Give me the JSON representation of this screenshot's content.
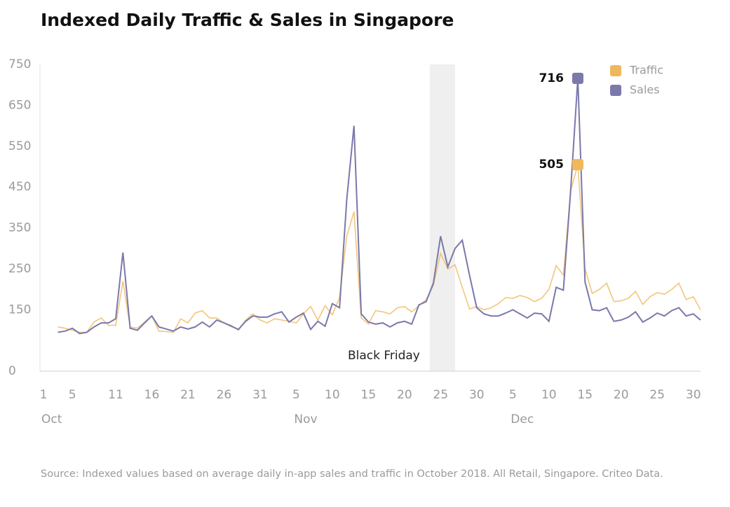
{
  "chart_data": {
    "type": "line",
    "title": "Indexed Daily Traffic & Sales in Singapore",
    "source": "Source: Indexed values based on average daily in-app sales and traffic in October 2018. All Retail, Singapore. Criteo Data.",
    "x": [
      3,
      4,
      5,
      6,
      7,
      8,
      9,
      10,
      11,
      12,
      13,
      14,
      15,
      16,
      17,
      18,
      19,
      20,
      21,
      22,
      23,
      24,
      25,
      26,
      27,
      28,
      29,
      30,
      31,
      32,
      33,
      34,
      35,
      36,
      37,
      38,
      39,
      40,
      41,
      42,
      43,
      44,
      45,
      46,
      47,
      48,
      49,
      50,
      51,
      52,
      53,
      54,
      55,
      56,
      57,
      58,
      59,
      60,
      61,
      62,
      63,
      64,
      65,
      66,
      67,
      68,
      69,
      70,
      71,
      72,
      73,
      74,
      75,
      76,
      77,
      78,
      79,
      80,
      81,
      82,
      83,
      84,
      85,
      86,
      87,
      88,
      89,
      90,
      91,
      92
    ],
    "series": [
      {
        "name": "Traffic",
        "color": "#f0b85a",
        "values": [
          108,
          105,
          100,
          95,
          95,
          120,
          130,
          112,
          112,
          220,
          108,
          105,
          120,
          135,
          98,
          97,
          95,
          128,
          118,
          142,
          148,
          130,
          130,
          118,
          112,
          100,
          125,
          140,
          125,
          118,
          128,
          125,
          122,
          118,
          140,
          158,
          125,
          160,
          138,
          180,
          330,
          390,
          130,
          115,
          148,
          145,
          140,
          155,
          158,
          145,
          160,
          175,
          210,
          288,
          250,
          260,
          205,
          152,
          158,
          150,
          155,
          165,
          180,
          178,
          185,
          180,
          170,
          178,
          200,
          258,
          235,
          440,
          505,
          250,
          190,
          200,
          215,
          170,
          172,
          178,
          195,
          163,
          182,
          192,
          188,
          200,
          215,
          175,
          182,
          150
        ]
      },
      {
        "name": "Sales",
        "color": "#7b78aa",
        "values": [
          95,
          98,
          105,
          92,
          95,
          108,
          118,
          118,
          128,
          290,
          105,
          100,
          118,
          135,
          108,
          103,
          98,
          108,
          103,
          108,
          120,
          108,
          125,
          118,
          110,
          102,
          122,
          135,
          132,
          132,
          140,
          145,
          120,
          132,
          142,
          102,
          122,
          110,
          165,
          155,
          420,
          600,
          140,
          120,
          115,
          118,
          108,
          118,
          122,
          115,
          162,
          170,
          215,
          330,
          255,
          300,
          320,
          235,
          155,
          140,
          135,
          135,
          142,
          150,
          140,
          130,
          142,
          140,
          122,
          205,
          198,
          440,
          716,
          218,
          150,
          148,
          155,
          122,
          125,
          132,
          145,
          120,
          130,
          142,
          135,
          148,
          155,
          135,
          140,
          125
        ]
      }
    ],
    "annotations": [
      {
        "text": "716",
        "series": 1,
        "index": 72
      },
      {
        "text": "505",
        "series": 0,
        "index": 72
      }
    ],
    "highlight": {
      "label": "Black Friday",
      "start": 54.5,
      "end": 58
    },
    "xlim": [
      1,
      92
    ],
    "xticks": [
      1,
      5,
      11,
      16,
      21,
      26,
      31,
      {
        "value": 36,
        "label": "5"
      },
      {
        "value": 41,
        "label": "10"
      },
      {
        "value": 46,
        "label": "15"
      },
      {
        "value": 51,
        "label": "20"
      },
      {
        "value": 56,
        "label": "25"
      },
      {
        "value": 61,
        "label": "30"
      },
      {
        "value": 66,
        "label": "5"
      },
      {
        "value": 71,
        "label": "10"
      },
      {
        "value": 76,
        "label": "15"
      },
      {
        "value": 81,
        "label": "20"
      },
      {
        "value": 86,
        "label": "25"
      },
      {
        "value": 91,
        "label": "30"
      }
    ],
    "month_labels": [
      {
        "value": 1,
        "label": "Oct"
      },
      {
        "value": 36,
        "label": "Nov"
      },
      {
        "value": 66,
        "label": "Dec"
      }
    ],
    "ylim": [
      0,
      750
    ],
    "yticks": [
      0,
      150,
      250,
      350,
      450,
      550,
      650,
      750
    ],
    "grid": false,
    "legend": "top-right"
  }
}
